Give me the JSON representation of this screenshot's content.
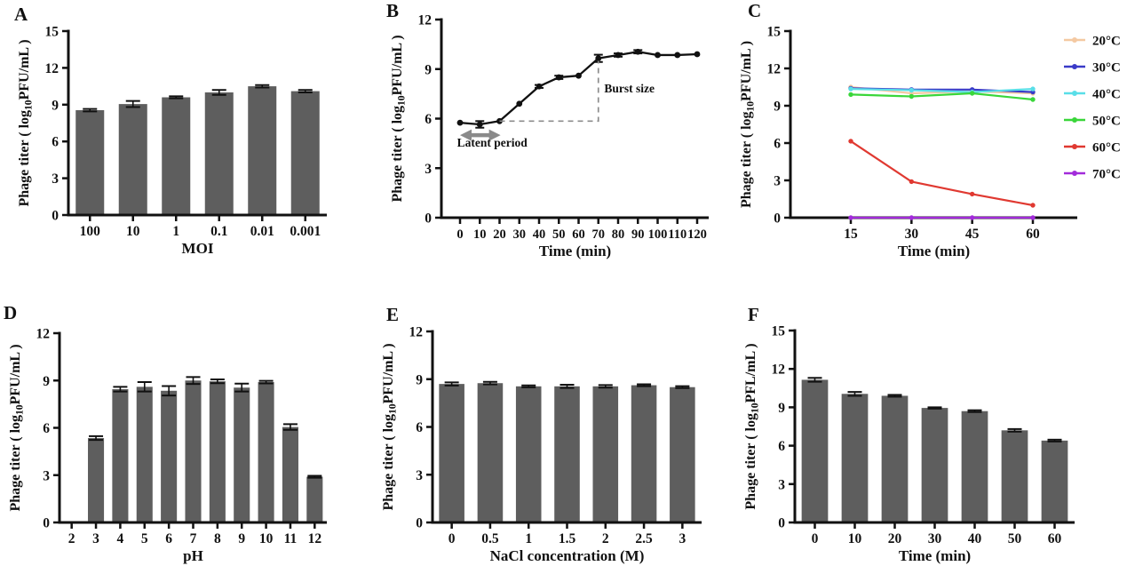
{
  "chart_data": [
    {
      "panel": "A",
      "type": "bar",
      "xlabel": "MOI",
      "ylabel": "Phage titer ( log10PFU/mL )",
      "ylim": [
        0,
        15
      ],
      "yticks": [
        0,
        3,
        6,
        9,
        12,
        15
      ],
      "categories": [
        "100",
        "10",
        "1",
        "0.1",
        "0.01",
        "0.001"
      ],
      "values": [
        8.55,
        9.05,
        9.6,
        10.0,
        10.5,
        10.1
      ],
      "errors": [
        0.1,
        0.25,
        0.08,
        0.2,
        0.1,
        0.1
      ],
      "bar_color": "#5E5E5E"
    },
    {
      "panel": "B",
      "type": "line",
      "xlabel": "Time (min)",
      "ylabel": "Phage titer ( log10PFU/mL )",
      "ylim": [
        0,
        12
      ],
      "yticks": [
        0,
        3,
        6,
        9,
        12
      ],
      "x": [
        0,
        10,
        20,
        30,
        40,
        50,
        60,
        70,
        80,
        90,
        100,
        110,
        120
      ],
      "values": [
        5.75,
        5.65,
        5.85,
        6.9,
        7.95,
        8.5,
        8.6,
        9.65,
        9.85,
        10.05,
        9.85,
        9.85,
        9.9
      ],
      "errors": [
        0.07,
        0.2,
        0.07,
        0.07,
        0.09,
        0.1,
        0.07,
        0.22,
        0.1,
        0.1,
        0.08,
        0.08,
        0.08
      ],
      "line_color": "#111111",
      "annotations": [
        {
          "type": "dashed-path",
          "color": "#8c8c8c",
          "points": [
            [
              20,
              5.85
            ],
            [
              70,
              5.85
            ],
            [
              70,
              9.5
            ]
          ]
        },
        {
          "type": "double-arrow",
          "color": "#8a8a8a",
          "from": [
            0,
            5.0
          ],
          "to": [
            20.5,
            5.0
          ]
        },
        {
          "type": "text",
          "text": "Latent period",
          "at": [
            -1.5,
            4.3
          ],
          "anchor": "start"
        },
        {
          "type": "text",
          "text": "Burst size",
          "at": [
            73,
            7.6
          ],
          "anchor": "start"
        }
      ]
    },
    {
      "panel": "C",
      "type": "line",
      "xlabel": "Time (min)",
      "ylabel": "Phage titer ( log10PFU/mL )",
      "ylim": [
        0,
        15
      ],
      "yticks": [
        0,
        3,
        6,
        9,
        12,
        15
      ],
      "x": [
        15,
        30,
        45,
        60
      ],
      "legend_position": "right",
      "series": [
        {
          "name": "20°C",
          "color": "#F4C9A2",
          "values": [
            10.5,
            10.0,
            10.15,
            10.0
          ]
        },
        {
          "name": "30°C",
          "color": "#3A3BC8",
          "values": [
            10.4,
            10.3,
            10.3,
            10.1
          ]
        },
        {
          "name": "40°C",
          "color": "#59DEE8",
          "values": [
            10.35,
            10.25,
            10.1,
            10.35
          ]
        },
        {
          "name": "50°C",
          "color": "#3AD63A",
          "values": [
            9.9,
            9.75,
            10.0,
            9.5
          ]
        },
        {
          "name": "60°C",
          "color": "#E03931",
          "values": [
            6.15,
            2.9,
            1.9,
            1.0
          ]
        },
        {
          "name": "70°C",
          "color": "#A22BDA",
          "values": [
            0,
            0,
            0,
            0
          ]
        }
      ]
    },
    {
      "panel": "D",
      "type": "bar",
      "xlabel": "pH",
      "ylabel": "Phage titer ( log10PFU/mL )",
      "ylim": [
        0,
        12
      ],
      "yticks": [
        0,
        3,
        6,
        9,
        12
      ],
      "categories": [
        "2",
        "3",
        "4",
        "5",
        "6",
        "7",
        "8",
        "9",
        "10",
        "11",
        "12"
      ],
      "values": [
        0,
        5.35,
        8.45,
        8.6,
        8.35,
        9.0,
        8.95,
        8.55,
        8.9,
        6.05,
        2.9
      ],
      "errors": [
        0,
        0.12,
        0.15,
        0.3,
        0.3,
        0.22,
        0.12,
        0.25,
        0.08,
        0.18,
        0.06
      ],
      "bar_color": "#5E5E5E"
    },
    {
      "panel": "E",
      "type": "bar",
      "xlabel": "NaCl concentration (M)",
      "ylabel": "Phage titer ( log10PFU/mL )",
      "ylim": [
        0,
        12
      ],
      "yticks": [
        0,
        3,
        6,
        9,
        12
      ],
      "categories": [
        "0",
        "0.5",
        "1",
        "1.5",
        "2",
        "2.5",
        "3"
      ],
      "values": [
        8.7,
        8.75,
        8.55,
        8.55,
        8.55,
        8.62,
        8.5
      ],
      "errors": [
        0.1,
        0.08,
        0.06,
        0.1,
        0.08,
        0.06,
        0.06
      ],
      "bar_color": "#5E5E5E"
    },
    {
      "panel": "F",
      "type": "bar",
      "xlabel": "Time (min)",
      "ylabel": "Phage titer ( log10PFL/mL )",
      "ylim": [
        0,
        15
      ],
      "yticks": [
        0,
        3,
        6,
        9,
        12,
        15
      ],
      "categories": [
        "0",
        "10",
        "20",
        "30",
        "40",
        "50",
        "60"
      ],
      "values": [
        11.15,
        10.05,
        9.9,
        8.95,
        8.7,
        7.2,
        6.4
      ],
      "errors": [
        0.15,
        0.15,
        0.07,
        0.05,
        0.07,
        0.1,
        0.07
      ],
      "bar_color": "#5E5E5E"
    }
  ]
}
